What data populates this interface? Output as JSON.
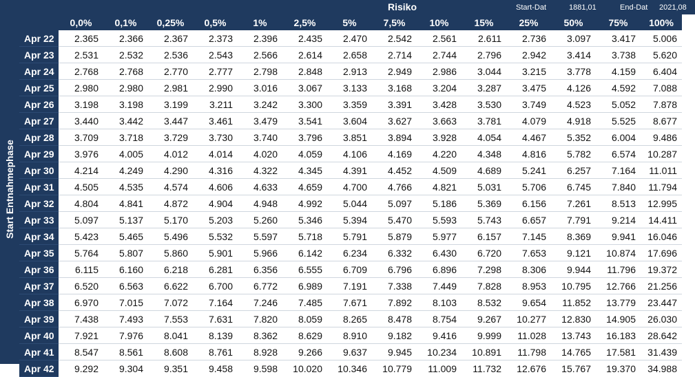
{
  "header": {
    "risiko_label": "Risiko",
    "start_label": "Start-Dat",
    "start_value": "1881,01",
    "end_label": "End-Dat",
    "end_value": "2021,08"
  },
  "side_label": "Start Entnahmephase",
  "columns": [
    "0,0%",
    "0,1%",
    "0,25%",
    "0,5%",
    "1%",
    "2,5%",
    "5%",
    "7,5%",
    "10%",
    "15%",
    "25%",
    "50%",
    "75%",
    "100%"
  ],
  "rows": [
    {
      "label": "Apr 22",
      "values": [
        "2.365",
        "2.366",
        "2.367",
        "2.373",
        "2.396",
        "2.435",
        "2.470",
        "2.542",
        "2.561",
        "2.611",
        "2.736",
        "3.097",
        "3.417",
        "5.006"
      ]
    },
    {
      "label": "Apr 23",
      "values": [
        "2.531",
        "2.532",
        "2.536",
        "2.543",
        "2.566",
        "2.614",
        "2.658",
        "2.714",
        "2.744",
        "2.796",
        "2.942",
        "3.414",
        "3.738",
        "5.620"
      ]
    },
    {
      "label": "Apr 24",
      "values": [
        "2.768",
        "2.768",
        "2.770",
        "2.777",
        "2.798",
        "2.848",
        "2.913",
        "2.949",
        "2.986",
        "3.044",
        "3.215",
        "3.778",
        "4.159",
        "6.404"
      ]
    },
    {
      "label": "Apr 25",
      "values": [
        "2.980",
        "2.980",
        "2.981",
        "2.990",
        "3.016",
        "3.067",
        "3.133",
        "3.168",
        "3.204",
        "3.287",
        "3.475",
        "4.126",
        "4.592",
        "7.088"
      ]
    },
    {
      "label": "Apr 26",
      "values": [
        "3.198",
        "3.198",
        "3.199",
        "3.211",
        "3.242",
        "3.300",
        "3.359",
        "3.391",
        "3.428",
        "3.530",
        "3.749",
        "4.523",
        "5.052",
        "7.878"
      ]
    },
    {
      "label": "Apr 27",
      "values": [
        "3.440",
        "3.442",
        "3.447",
        "3.461",
        "3.479",
        "3.541",
        "3.604",
        "3.627",
        "3.663",
        "3.781",
        "4.079",
        "4.918",
        "5.525",
        "8.677"
      ]
    },
    {
      "label": "Apr 28",
      "values": [
        "3.709",
        "3.718",
        "3.729",
        "3.730",
        "3.740",
        "3.796",
        "3.851",
        "3.894",
        "3.928",
        "4.054",
        "4.467",
        "5.352",
        "6.004",
        "9.486"
      ]
    },
    {
      "label": "Apr 29",
      "values": [
        "3.976",
        "4.005",
        "4.012",
        "4.014",
        "4.020",
        "4.059",
        "4.106",
        "4.169",
        "4.220",
        "4.348",
        "4.816",
        "5.782",
        "6.574",
        "10.287"
      ]
    },
    {
      "label": "Apr 30",
      "values": [
        "4.214",
        "4.249",
        "4.290",
        "4.316",
        "4.322",
        "4.345",
        "4.391",
        "4.452",
        "4.509",
        "4.689",
        "5.241",
        "6.257",
        "7.164",
        "11.011"
      ]
    },
    {
      "label": "Apr 31",
      "values": [
        "4.505",
        "4.535",
        "4.574",
        "4.606",
        "4.633",
        "4.659",
        "4.700",
        "4.766",
        "4.821",
        "5.031",
        "5.706",
        "6.745",
        "7.840",
        "11.794"
      ]
    },
    {
      "label": "Apr 32",
      "values": [
        "4.804",
        "4.841",
        "4.872",
        "4.904",
        "4.948",
        "4.992",
        "5.044",
        "5.097",
        "5.186",
        "5.369",
        "6.156",
        "7.261",
        "8.513",
        "12.995"
      ]
    },
    {
      "label": "Apr 33",
      "values": [
        "5.097",
        "5.137",
        "5.170",
        "5.203",
        "5.260",
        "5.346",
        "5.394",
        "5.470",
        "5.593",
        "5.743",
        "6.657",
        "7.791",
        "9.214",
        "14.411"
      ]
    },
    {
      "label": "Apr 34",
      "values": [
        "5.423",
        "5.465",
        "5.496",
        "5.532",
        "5.597",
        "5.718",
        "5.791",
        "5.879",
        "5.977",
        "6.157",
        "7.145",
        "8.369",
        "9.941",
        "16.046"
      ]
    },
    {
      "label": "Apr 35",
      "values": [
        "5.764",
        "5.807",
        "5.860",
        "5.901",
        "5.966",
        "6.142",
        "6.234",
        "6.332",
        "6.430",
        "6.720",
        "7.653",
        "9.121",
        "10.874",
        "17.696"
      ]
    },
    {
      "label": "Apr 36",
      "values": [
        "6.115",
        "6.160",
        "6.218",
        "6.281",
        "6.356",
        "6.555",
        "6.709",
        "6.796",
        "6.896",
        "7.298",
        "8.306",
        "9.944",
        "11.796",
        "19.372"
      ]
    },
    {
      "label": "Apr 37",
      "values": [
        "6.520",
        "6.563",
        "6.622",
        "6.700",
        "6.772",
        "6.989",
        "7.191",
        "7.338",
        "7.449",
        "7.828",
        "8.953",
        "10.795",
        "12.766",
        "21.256"
      ]
    },
    {
      "label": "Apr 38",
      "values": [
        "6.970",
        "7.015",
        "7.072",
        "7.164",
        "7.246",
        "7.485",
        "7.671",
        "7.892",
        "8.103",
        "8.532",
        "9.654",
        "11.852",
        "13.779",
        "23.447"
      ]
    },
    {
      "label": "Apr 39",
      "values": [
        "7.438",
        "7.493",
        "7.553",
        "7.631",
        "7.820",
        "8.059",
        "8.265",
        "8.478",
        "8.754",
        "9.267",
        "10.277",
        "12.830",
        "14.905",
        "26.030"
      ]
    },
    {
      "label": "Apr 40",
      "values": [
        "7.921",
        "7.976",
        "8.041",
        "8.139",
        "8.362",
        "8.629",
        "8.910",
        "9.182",
        "9.416",
        "9.999",
        "11.028",
        "13.743",
        "16.183",
        "28.642"
      ]
    },
    {
      "label": "Apr 41",
      "values": [
        "8.547",
        "8.561",
        "8.608",
        "8.761",
        "8.928",
        "9.266",
        "9.637",
        "9.945",
        "10.234",
        "10.891",
        "11.798",
        "14.765",
        "17.581",
        "31.439"
      ]
    },
    {
      "label": "Apr 42",
      "values": [
        "9.292",
        "9.304",
        "9.351",
        "9.458",
        "9.598",
        "10.020",
        "10.346",
        "10.779",
        "11.009",
        "11.732",
        "12.676",
        "15.767",
        "19.370",
        "34.988"
      ]
    }
  ]
}
